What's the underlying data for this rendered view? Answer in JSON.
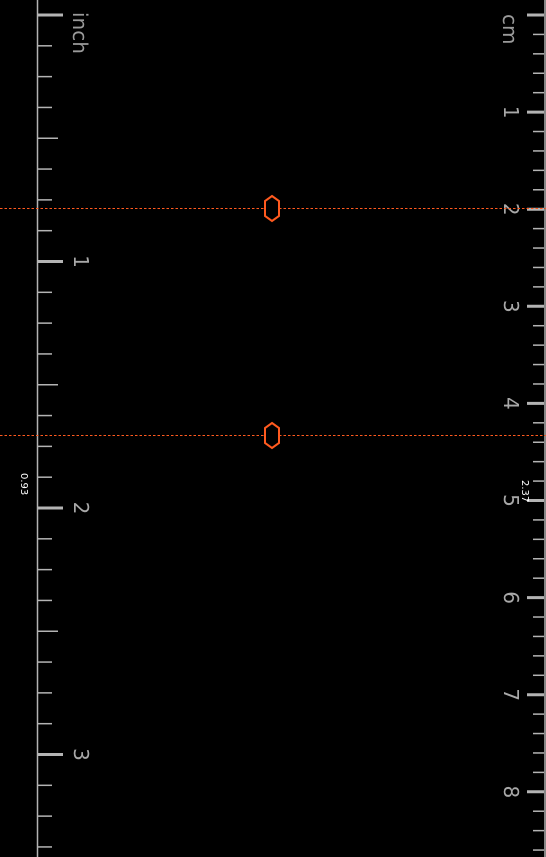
{
  "units": {
    "left": "inch",
    "right": "cm"
  },
  "inch_scale": {
    "labels": [
      "1",
      "2",
      "3"
    ],
    "max_value": 3.4
  },
  "cm_scale": {
    "labels": [
      "1",
      "2",
      "3",
      "4",
      "5",
      "6",
      "7",
      "8"
    ],
    "max_value": 8.6
  },
  "measurement": {
    "inch_value": "0.93",
    "cm_value": "2.37"
  },
  "colors": {
    "background": "#000000",
    "tick": "#b4b4b4",
    "label": "#a8a8a8",
    "marker": "#ff5a1f"
  },
  "icons": {
    "handle": "hexagon-handle-icon"
  }
}
